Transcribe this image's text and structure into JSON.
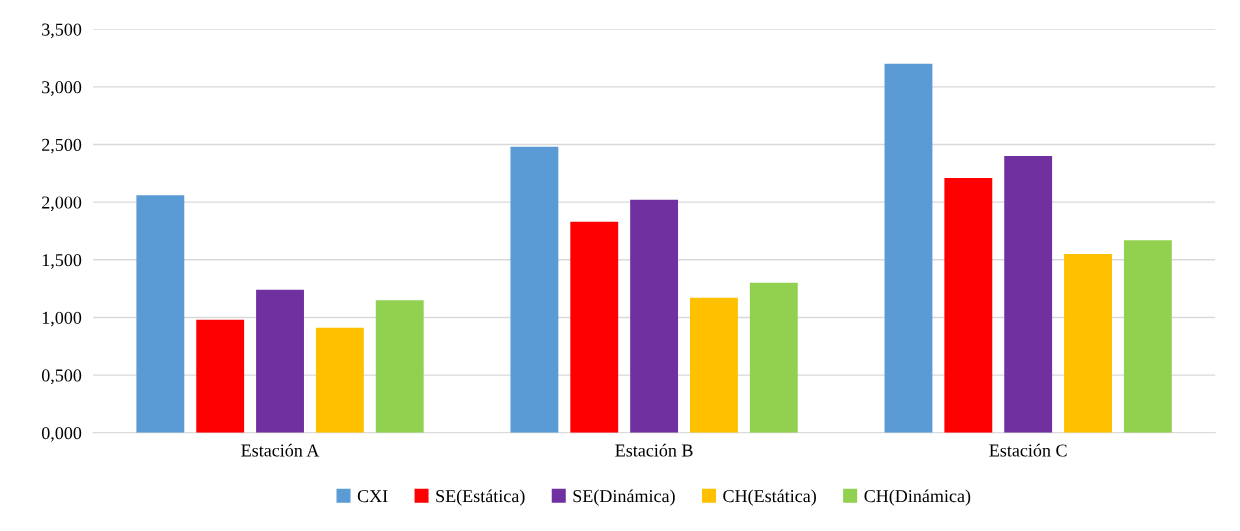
{
  "chart_data": {
    "type": "bar",
    "categories": [
      "Estación A",
      "Estación B",
      "Estación C"
    ],
    "series": [
      {
        "name": "CXI",
        "color": "#5b9bd5",
        "values": [
          2.06,
          2.48,
          3.2
        ]
      },
      {
        "name": "SE(Estática)",
        "color": "#ff0000",
        "values": [
          0.98,
          1.83,
          2.21
        ]
      },
      {
        "name": "SE(Dinámica)",
        "color": "#7030a0",
        "values": [
          1.24,
          2.02,
          2.4
        ]
      },
      {
        "name": "CH(Estática)",
        "color": "#ffc000",
        "values": [
          0.91,
          1.17,
          1.55
        ]
      },
      {
        "name": "CH(Dinámica)",
        "color": "#92d050",
        "values": [
          1.15,
          1.3,
          1.67
        ]
      }
    ],
    "ylim": [
      0,
      3.5
    ],
    "yticks": [
      {
        "value": 0,
        "label": "0,000"
      },
      {
        "value": 0.5,
        "label": "0,500"
      },
      {
        "value": 1.0,
        "label": "1,000"
      },
      {
        "value": 1.5,
        "label": "1,500"
      },
      {
        "value": 2.0,
        "label": "2,000"
      },
      {
        "value": 2.5,
        "label": "2,500"
      },
      {
        "value": 3.0,
        "label": "3,000"
      },
      {
        "value": 3.5,
        "label": "3,500"
      }
    ],
    "grid": "y",
    "legend": "bottom"
  }
}
